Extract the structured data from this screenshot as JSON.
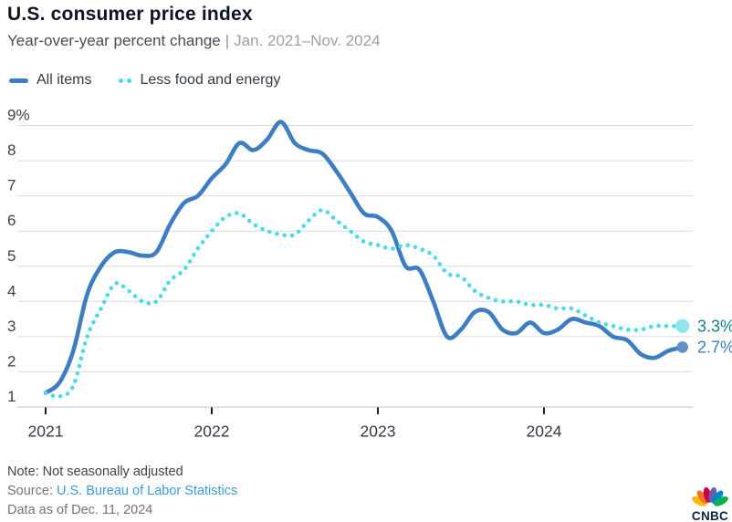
{
  "header": {
    "title": "U.S. consumer price index",
    "subtitle": "Year-over-year percent change",
    "separator": "|",
    "date_range": "Jan. 2021–Nov. 2024"
  },
  "legend": [
    {
      "label": "All items",
      "color": "#3d7ec2",
      "style": "solid"
    },
    {
      "label": "Less food and energy",
      "color": "#4ed9e7",
      "style": "dotted"
    }
  ],
  "chart_data": {
    "type": "line",
    "title": "U.S. consumer price index",
    "subtitle": "Year-over-year percent change | Jan. 2021–Nov. 2024",
    "xlabel": "",
    "ylabel": "Year-over-year percent change",
    "ylim": [
      1,
      9.1
    ],
    "grid": "horizontal",
    "legend_position": "top-left",
    "y_ticks": [
      1,
      2,
      3,
      4,
      5,
      6,
      7,
      8,
      9
    ],
    "y_top_label": "9%",
    "x_tick_labels": [
      "2021",
      "2022",
      "2023",
      "2024"
    ],
    "x": [
      "2021-01",
      "2021-02",
      "2021-03",
      "2021-04",
      "2021-05",
      "2021-06",
      "2021-07",
      "2021-08",
      "2021-09",
      "2021-10",
      "2021-11",
      "2021-12",
      "2022-01",
      "2022-02",
      "2022-03",
      "2022-04",
      "2022-05",
      "2022-06",
      "2022-07",
      "2022-08",
      "2022-09",
      "2022-10",
      "2022-11",
      "2022-12",
      "2023-01",
      "2023-02",
      "2023-03",
      "2023-04",
      "2023-05",
      "2023-06",
      "2023-07",
      "2023-08",
      "2023-09",
      "2023-10",
      "2023-11",
      "2023-12",
      "2024-01",
      "2024-02",
      "2024-03",
      "2024-04",
      "2024-05",
      "2024-06",
      "2024-07",
      "2024-08",
      "2024-09",
      "2024-10",
      "2024-11"
    ],
    "series": [
      {
        "id": "all-items",
        "name": "All items",
        "line_style": "solid",
        "color": "#3d7ec2",
        "end_label": "2.7%",
        "end_label_color": "#3d7ec2",
        "end_dot_color": "#5e90cc",
        "values": [
          1.4,
          1.7,
          2.6,
          4.2,
          5.0,
          5.4,
          5.4,
          5.3,
          5.4,
          6.2,
          6.8,
          7.0,
          7.5,
          7.9,
          8.5,
          8.3,
          8.6,
          9.1,
          8.5,
          8.3,
          8.2,
          7.7,
          7.1,
          6.5,
          6.4,
          6.0,
          5.0,
          4.9,
          4.0,
          3.0,
          3.2,
          3.7,
          3.7,
          3.2,
          3.1,
          3.4,
          3.1,
          3.2,
          3.5,
          3.4,
          3.3,
          3.0,
          2.9,
          2.5,
          2.4,
          2.6,
          2.7
        ]
      },
      {
        "id": "less-food-and-energy",
        "name": "Less food and energy",
        "line_style": "dotted",
        "color": "#4ed9e7",
        "end_label": "3.3%",
        "end_label_color": "#12818f",
        "end_dot_color": "#8fe5ee",
        "values": [
          1.4,
          1.3,
          1.6,
          3.0,
          3.8,
          4.5,
          4.3,
          4.0,
          4.0,
          4.6,
          4.9,
          5.5,
          6.0,
          6.4,
          6.5,
          6.2,
          6.0,
          5.9,
          5.9,
          6.3,
          6.6,
          6.3,
          6.0,
          5.7,
          5.6,
          5.5,
          5.6,
          5.5,
          5.3,
          4.8,
          4.7,
          4.3,
          4.1,
          4.0,
          4.0,
          3.9,
          3.9,
          3.8,
          3.8,
          3.6,
          3.4,
          3.3,
          3.2,
          3.2,
          3.3,
          3.3,
          3.3
        ]
      }
    ],
    "colors": {
      "gridline": "#dcdcdc",
      "axis_line": "#c3c3c3",
      "tick_mark": "#1b1e24",
      "y_label": "#3b4048",
      "x_label": "#333a44"
    }
  },
  "footer": {
    "note": "Note: Not seasonally adjusted",
    "source_prefix": "Source: ",
    "source_link": "U.S. Bureau of Labor Statistics",
    "data_as_of": "Data as of Dec. 11, 2024"
  },
  "logo": {
    "wordmark": "CNBC",
    "wordmark_color": "#0a2442",
    "peacock_colors": [
      "#FCB711",
      "#F37021",
      "#CC004C",
      "#6460AA",
      "#0089D0",
      "#0DB14B"
    ]
  }
}
